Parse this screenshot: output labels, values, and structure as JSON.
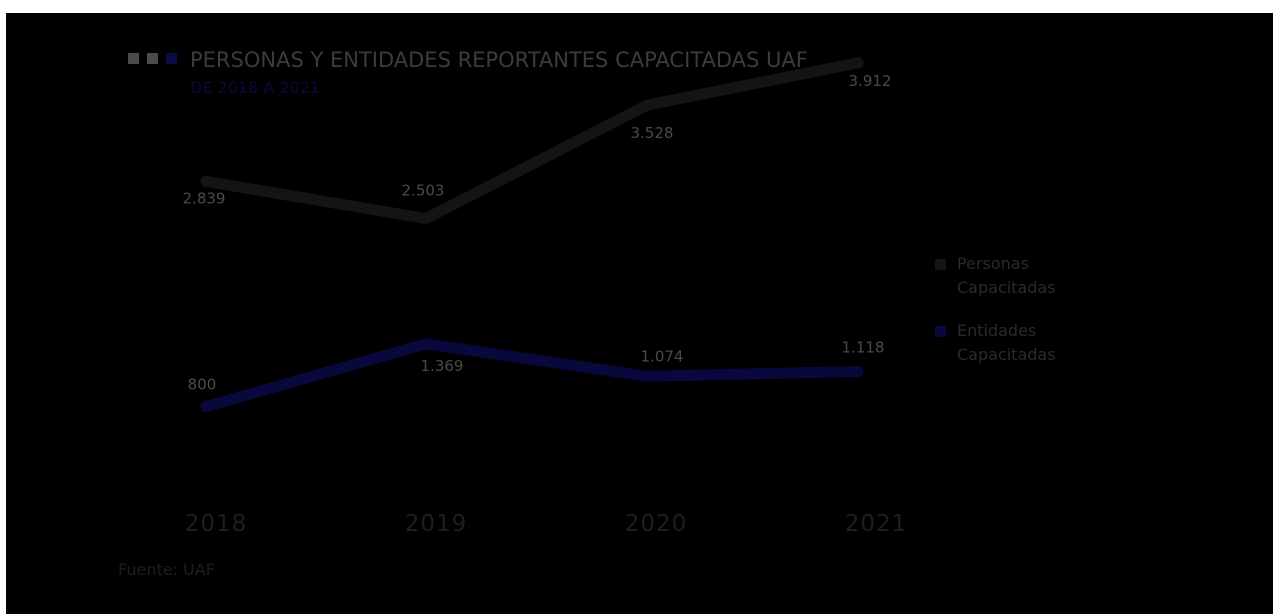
{
  "chart_data": {
    "type": "line",
    "title": "PERSONAS Y ENTIDADES REPORTANTES CAPACITADAS UAF",
    "subtitle": "DE 2018 A 2021",
    "categories": [
      "2018",
      "2019",
      "2020",
      "2021"
    ],
    "ylim": [
      0,
      4200
    ],
    "grid": false,
    "legend_position": "right",
    "series": [
      {
        "name": "Personas Capacitadas",
        "legend_lines": [
          "Personas",
          "Capacitadas"
        ],
        "values": [
          2839,
          2503,
          3528,
          3912
        ],
        "labels": [
          "2.839",
          "2.503",
          "3.528",
          "3.912"
        ],
        "color": "#141414"
      },
      {
        "name": "Entidades Capacitadas",
        "legend_lines": [
          "Entidades",
          "Capacitadas"
        ],
        "values": [
          800,
          1369,
          1074,
          1118
        ],
        "labels": [
          "800",
          "1.369",
          "1.074",
          "1.118"
        ],
        "color": "#08083c"
      }
    ],
    "title_squares": [
      "#4a4a4a",
      "#4a4a4a",
      "#0a0a44"
    ],
    "legend_label_color": "#2a2a2a",
    "source": "Fuente: UAF"
  }
}
